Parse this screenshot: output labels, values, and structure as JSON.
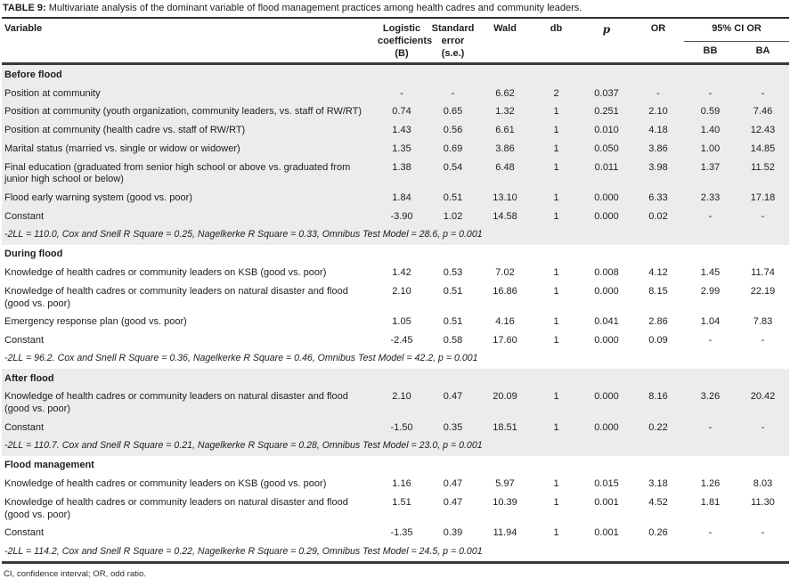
{
  "title": {
    "prefix": "TABLE 9:",
    "text": "Multivariate analysis of the dominant variable of flood management practices among health cadres and community leaders."
  },
  "header": {
    "variable": "Variable",
    "b": "Logistic coefficients (B)",
    "se": "Standard error (s.e.)",
    "wald": "Wald",
    "db": "db",
    "p": "p",
    "or": "OR",
    "ci": "95% CI OR",
    "bb": "BB",
    "ba": "BA"
  },
  "sections": [
    {
      "name": "Before flood",
      "shaded": true,
      "rows": [
        {
          "variable": "Position at community",
          "b": "-",
          "se": "-",
          "wald": "6.62",
          "db": "2",
          "p": "0.037",
          "or": "-",
          "bb": "-",
          "ba": "-"
        },
        {
          "variable": "Position at community (youth organization, community leaders, vs. staff of RW/RT)",
          "b": "0.74",
          "se": "0.65",
          "wald": "1.32",
          "db": "1",
          "p": "0.251",
          "or": "2.10",
          "bb": "0.59",
          "ba": "7.46"
        },
        {
          "variable": "Position at community (health cadre vs. staff of RW/RT)",
          "b": "1.43",
          "se": "0.56",
          "wald": "6.61",
          "db": "1",
          "p": "0.010",
          "or": "4.18",
          "bb": "1.40",
          "ba": "12.43"
        },
        {
          "variable": "Marital status (married vs. single or widow or widower)",
          "b": "1.35",
          "se": "0.69",
          "wald": "3.86",
          "db": "1",
          "p": "0.050",
          "or": "3.86",
          "bb": "1.00",
          "ba": "14.85"
        },
        {
          "variable": "Final education (graduated from senior high school or above vs. graduated from junior high school or below)",
          "b": "1.38",
          "se": "0.54",
          "wald": "6.48",
          "db": "1",
          "p": "0.011",
          "or": "3.98",
          "bb": "1.37",
          "ba": "11.52"
        },
        {
          "variable": "Flood early warning system (good vs. poor)",
          "b": "1.84",
          "se": "0.51",
          "wald": "13.10",
          "db": "1",
          "p": "0.000",
          "or": "6.33",
          "bb": "2.33",
          "ba": "17.18"
        },
        {
          "variable": "Constant",
          "b": "-3.90",
          "se": "1.02",
          "wald": "14.58",
          "db": "1",
          "p": "0.000",
          "or": "0.02",
          "bb": "-",
          "ba": "-"
        }
      ],
      "note": "-2LL = 110.0, Cox and Snell R Square = 0.25, Nagelkerke R Square = 0.33, Omnibus Test Model = 28.6, p = 0.001"
    },
    {
      "name": "During flood",
      "shaded": false,
      "rows": [
        {
          "variable": "Knowledge of health cadres or community leaders on KSB (good vs. poor)",
          "b": "1.42",
          "se": "0.53",
          "wald": "7.02",
          "db": "1",
          "p": "0.008",
          "or": "4.12",
          "bb": "1.45",
          "ba": "11.74"
        },
        {
          "variable": "Knowledge of health cadres or community leaders on natural disaster and flood (good vs. poor)",
          "b": "2.10",
          "se": "0.51",
          "wald": "16.86",
          "db": "1",
          "p": "0.000",
          "or": "8.15",
          "bb": "2.99",
          "ba": "22.19"
        },
        {
          "variable": "Emergency response plan (good vs. poor)",
          "b": "1.05",
          "se": "0.51",
          "wald": "4.16",
          "db": "1",
          "p": "0.041",
          "or": "2.86",
          "bb": "1.04",
          "ba": "7.83"
        },
        {
          "variable": "Constant",
          "b": "-2.45",
          "se": "0.58",
          "wald": "17.60",
          "db": "1",
          "p": "0.000",
          "or": "0.09",
          "bb": "-",
          "ba": "-"
        }
      ],
      "note": "-2LL = 96.2. Cox and Snell R Square = 0.36, Nagelkerke R Square = 0.46, Omnibus Test Model = 42.2, p = 0.001"
    },
    {
      "name": "After flood",
      "shaded": true,
      "rows": [
        {
          "variable": "Knowledge of health cadres or community leaders on natural disaster and flood (good vs. poor)",
          "b": "2.10",
          "se": "0.47",
          "wald": "20.09",
          "db": "1",
          "p": "0.000",
          "or": "8.16",
          "bb": "3.26",
          "ba": "20.42"
        },
        {
          "variable": "Constant",
          "b": "-1.50",
          "se": "0.35",
          "wald": "18.51",
          "db": "1",
          "p": "0.000",
          "or": "0.22",
          "bb": "-",
          "ba": "-"
        }
      ],
      "note": "-2LL = 110.7. Cox and Snell R Square = 0.21, Nagelkerke R Square = 0.28, Omnibus Test Model = 23.0, p = 0.001"
    },
    {
      "name": "Flood management",
      "shaded": false,
      "rows": [
        {
          "variable": "Knowledge of health cadres or community leaders on KSB (good vs. poor)",
          "b": "1.16",
          "se": "0.47",
          "wald": "5.97",
          "db": "1",
          "p": "0.015",
          "or": "3.18",
          "bb": "1.26",
          "ba": "8.03"
        },
        {
          "variable": "Knowledge of health cadres or community leaders on natural disaster and flood (good vs. poor)",
          "b": "1.51",
          "se": "0.47",
          "wald": "10.39",
          "db": "1",
          "p": "0.001",
          "or": "4.52",
          "bb": "1.81",
          "ba": "11.30"
        },
        {
          "variable": "Constant",
          "b": "-1.35",
          "se": "0.39",
          "wald": "11.94",
          "db": "1",
          "p": "0.001",
          "or": "0.26",
          "bb": "-",
          "ba": "-"
        }
      ],
      "note": "-2LL = 114.2, Cox and Snell R Square = 0.22, Nagelkerke R Square = 0.29, Omnibus Test Model = 24.5, p = 0.001"
    }
  ],
  "footnote": "CI, confidence interval; OR, odd ratio.",
  "colors": {
    "section_shade": "#ececec",
    "rule_dark": "#3a3a38",
    "text": "#1d1d1b"
  }
}
